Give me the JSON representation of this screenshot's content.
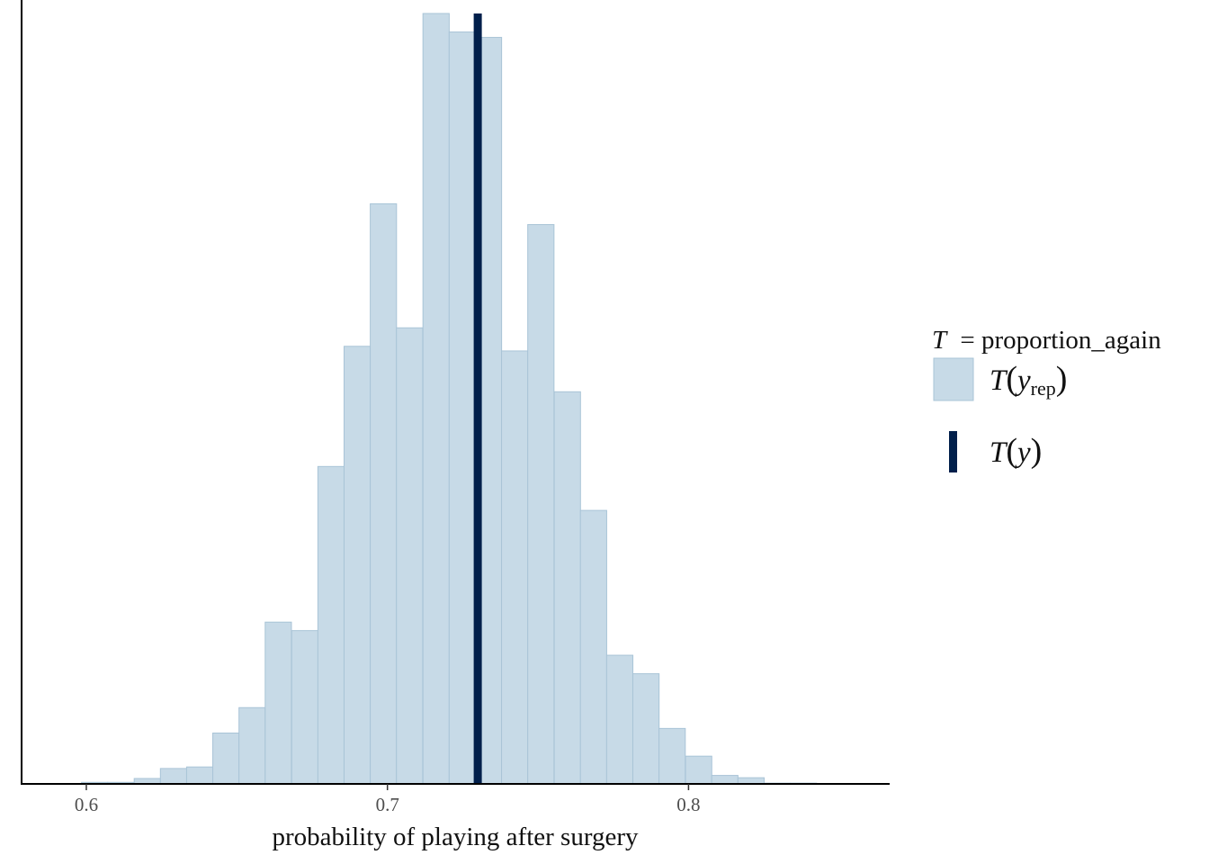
{
  "colors": {
    "bar_fill": "#c7dae7",
    "bar_stroke": "#a9c4d7",
    "observed_line": "#011f4b",
    "axis": "#000000"
  },
  "chart_data": {
    "type": "histogram",
    "xlabel": "probability of playing after surgery",
    "ylabel": "",
    "xlim": [
      0.5785,
      0.8665
    ],
    "ylim": [
      0,
      1
    ],
    "x_ticks": [
      0.6,
      0.7,
      0.8
    ],
    "x_tick_labels": [
      "0.6",
      "0.7",
      "0.8"
    ],
    "y_axis_ticks": false,
    "grid": false,
    "bin_width": 0.00872,
    "bins_start": [
      0.5984,
      0.6071,
      0.6159,
      0.6246,
      0.6333,
      0.642,
      0.6507,
      0.6594,
      0.6682,
      0.6769,
      0.6856,
      0.6943,
      0.703,
      0.7118,
      0.7205,
      0.7292,
      0.7379,
      0.7466,
      0.7554,
      0.7641,
      0.7728,
      0.7815,
      0.7902,
      0.799,
      0.8077,
      0.8164,
      0.8251,
      0.8338,
      0.8426
    ],
    "counts_relative": [
      0.002,
      0.002,
      0.007,
      0.02,
      0.022,
      0.066,
      0.099,
      0.21,
      0.199,
      0.412,
      0.568,
      0.753,
      0.592,
      1.0,
      0.976,
      0.969,
      0.562,
      0.726,
      0.509,
      0.355,
      0.167,
      0.143,
      0.072,
      0.036,
      0.011,
      0.008,
      0.001,
      0.001,
      0.0
    ],
    "observed_value": 0.73,
    "legend": {
      "position": "right",
      "title_symbol": "T",
      "title_text": "= proportion_again",
      "items": [
        {
          "symbol": "T",
          "arg": "y",
          "sub": "rep",
          "glyph": "box"
        },
        {
          "symbol": "T",
          "arg": "y",
          "sub": "",
          "glyph": "line"
        }
      ]
    }
  }
}
